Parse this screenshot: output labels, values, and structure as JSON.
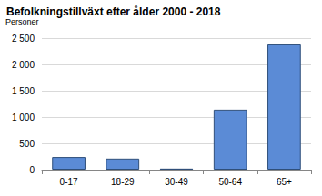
{
  "chart_data": {
    "type": "bar",
    "title": "Befolkningstillväxt efter ålder 2000 - 2018",
    "ylabel": "Personer",
    "categories": [
      "0-17",
      "18-29",
      "30-49",
      "50-64",
      "65+"
    ],
    "values": [
      240,
      210,
      20,
      1140,
      2380
    ],
    "color": "#5b8bd6",
    "ylim": [
      0,
      2500
    ],
    "yticks": [
      0,
      500,
      {
        "value": 1000,
        "label": "1 000"
      },
      {
        "value": 1500,
        "label": "1 500"
      },
      {
        "value": 2000,
        "label": "2 000"
      },
      {
        "value": 2500,
        "label": "2 500"
      }
    ],
    "grid": true
  }
}
